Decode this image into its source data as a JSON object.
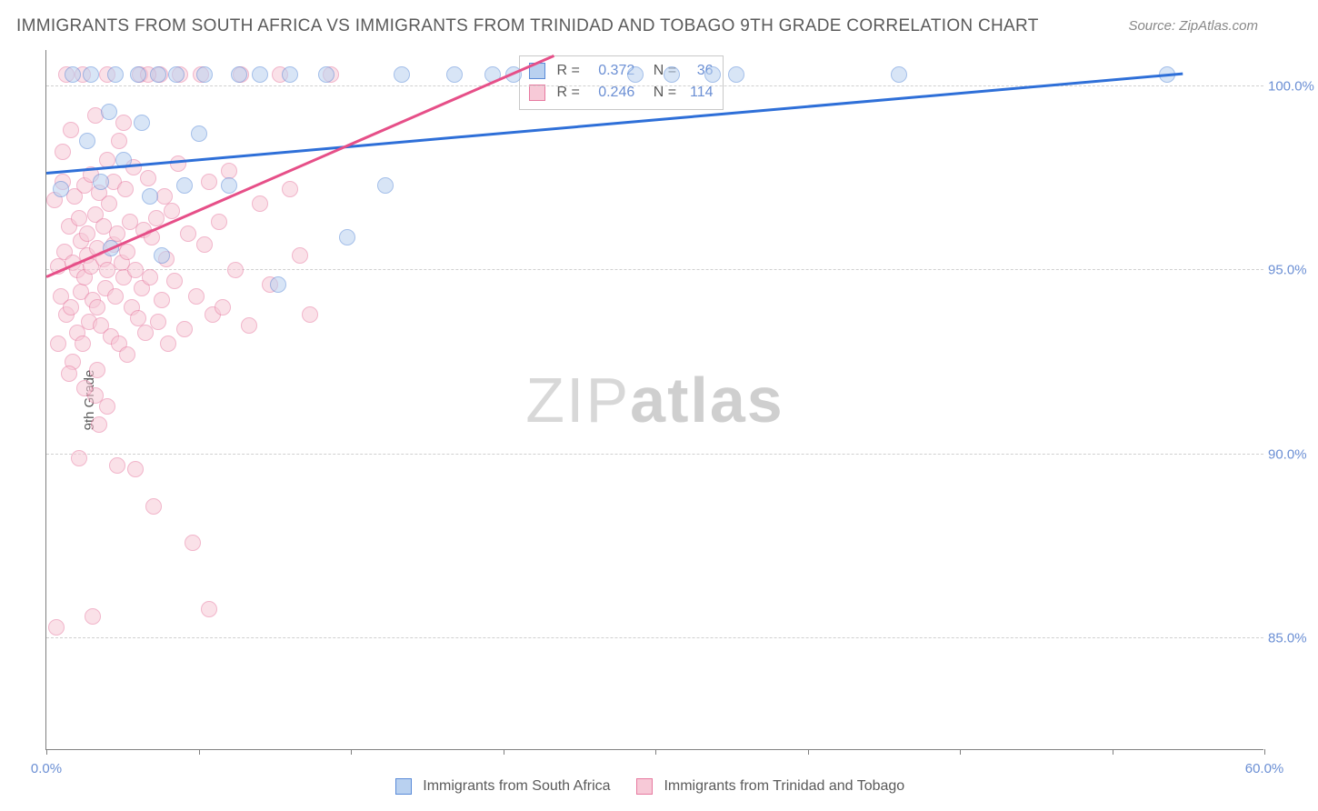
{
  "title": "IMMIGRANTS FROM SOUTH AFRICA VS IMMIGRANTS FROM TRINIDAD AND TOBAGO 9TH GRADE CORRELATION CHART",
  "source": "Source: ZipAtlas.com",
  "watermark_thin": "ZIP",
  "watermark_bold": "atlas",
  "ylabel": "9th Grade",
  "chart": {
    "type": "scatter",
    "xlim": [
      0,
      60
    ],
    "ylim": [
      82,
      101
    ],
    "xtick_positions": [
      0,
      7.5,
      15,
      22.5,
      30,
      37.5,
      45,
      52.5,
      60
    ],
    "xtick_labels": {
      "0": "0.0%",
      "60": "60.0%"
    },
    "ytick_positions": [
      85,
      90,
      95,
      100
    ],
    "ytick_labels": [
      "85.0%",
      "90.0%",
      "95.0%",
      "100.0%"
    ],
    "grid_color": "#d0d0d0",
    "series": [
      {
        "name": "Immigrants from South Africa",
        "fill": "#b9d1f0",
        "stroke": "#5a8bd8",
        "line_color": "#2e6fd8",
        "R": "0.372",
        "N": "36",
        "reg_line": {
          "x1": 0,
          "y1": 97.6,
          "x2": 56,
          "y2": 100.3
        },
        "points": [
          [
            0.7,
            97.2
          ],
          [
            1.3,
            100.3
          ],
          [
            2.0,
            98.5
          ],
          [
            2.2,
            100.3
          ],
          [
            2.7,
            97.4
          ],
          [
            3.1,
            99.3
          ],
          [
            3.2,
            95.6
          ],
          [
            3.4,
            100.3
          ],
          [
            3.8,
            98.0
          ],
          [
            4.5,
            100.3
          ],
          [
            4.7,
            99.0
          ],
          [
            5.1,
            97.0
          ],
          [
            5.5,
            100.3
          ],
          [
            5.7,
            95.4
          ],
          [
            6.4,
            100.3
          ],
          [
            6.8,
            97.3
          ],
          [
            7.5,
            98.7
          ],
          [
            7.8,
            100.3
          ],
          [
            9.0,
            97.3
          ],
          [
            9.5,
            100.3
          ],
          [
            10.5,
            100.3
          ],
          [
            11.4,
            94.6
          ],
          [
            12.0,
            100.3
          ],
          [
            13.8,
            100.3
          ],
          [
            14.8,
            95.9
          ],
          [
            16.7,
            97.3
          ],
          [
            17.5,
            100.3
          ],
          [
            20.1,
            100.3
          ],
          [
            22.0,
            100.3
          ],
          [
            23.0,
            100.3
          ],
          [
            29.0,
            100.3
          ],
          [
            30.8,
            100.3
          ],
          [
            32.8,
            100.3
          ],
          [
            34.0,
            100.3
          ],
          [
            42.0,
            100.3
          ],
          [
            55.2,
            100.3
          ]
        ]
      },
      {
        "name": "Immigrants from Trinidad and Tobago",
        "fill": "#f7c9d7",
        "stroke": "#e77aa0",
        "line_color": "#e64f88",
        "R": "0.246",
        "N": "114",
        "reg_line": {
          "x1": 0,
          "y1": 94.8,
          "x2": 25,
          "y2": 100.8
        },
        "points": [
          [
            0.4,
            96.9
          ],
          [
            0.6,
            95.1
          ],
          [
            0.7,
            94.3
          ],
          [
            0.8,
            97.4
          ],
          [
            0.9,
            95.5
          ],
          [
            1.0,
            93.8
          ],
          [
            1.1,
            96.2
          ],
          [
            1.2,
            94.0
          ],
          [
            1.3,
            95.2
          ],
          [
            1.3,
            92.5
          ],
          [
            1.4,
            97.0
          ],
          [
            1.5,
            95.0
          ],
          [
            1.5,
            93.3
          ],
          [
            1.6,
            96.4
          ],
          [
            1.7,
            94.4
          ],
          [
            1.7,
            95.8
          ],
          [
            1.8,
            93.0
          ],
          [
            1.9,
            97.3
          ],
          [
            1.9,
            94.8
          ],
          [
            2.0,
            95.4
          ],
          [
            2.0,
            96.0
          ],
          [
            2.1,
            93.6
          ],
          [
            2.2,
            95.1
          ],
          [
            2.2,
            97.6
          ],
          [
            2.3,
            94.2
          ],
          [
            2.4,
            96.5
          ],
          [
            2.4,
            91.6
          ],
          [
            2.5,
            95.6
          ],
          [
            2.5,
            94.0
          ],
          [
            2.6,
            97.1
          ],
          [
            2.7,
            93.5
          ],
          [
            2.8,
            95.3
          ],
          [
            2.8,
            96.2
          ],
          [
            2.9,
            94.5
          ],
          [
            3.0,
            98.0
          ],
          [
            3.0,
            95.0
          ],
          [
            3.1,
            96.8
          ],
          [
            3.2,
            93.2
          ],
          [
            3.3,
            97.4
          ],
          [
            3.3,
            95.7
          ],
          [
            3.4,
            94.3
          ],
          [
            3.5,
            96.0
          ],
          [
            3.6,
            98.5
          ],
          [
            3.6,
            93.0
          ],
          [
            3.7,
            95.2
          ],
          [
            3.8,
            94.8
          ],
          [
            3.9,
            97.2
          ],
          [
            4.0,
            95.5
          ],
          [
            4.0,
            92.7
          ],
          [
            4.1,
            96.3
          ],
          [
            4.2,
            94.0
          ],
          [
            4.3,
            97.8
          ],
          [
            4.4,
            89.6
          ],
          [
            4.4,
            95.0
          ],
          [
            4.5,
            93.7
          ],
          [
            4.6,
            100.3
          ],
          [
            4.7,
            94.5
          ],
          [
            4.8,
            96.1
          ],
          [
            4.9,
            93.3
          ],
          [
            5.0,
            97.5
          ],
          [
            5.1,
            94.8
          ],
          [
            5.2,
            95.9
          ],
          [
            5.3,
            88.6
          ],
          [
            5.4,
            96.4
          ],
          [
            5.5,
            93.6
          ],
          [
            5.6,
            100.3
          ],
          [
            5.7,
            94.2
          ],
          [
            5.8,
            97.0
          ],
          [
            5.9,
            95.3
          ],
          [
            6.0,
            93.0
          ],
          [
            6.2,
            96.6
          ],
          [
            6.3,
            94.7
          ],
          [
            6.5,
            97.9
          ],
          [
            6.6,
            100.3
          ],
          [
            6.8,
            93.4
          ],
          [
            7.0,
            96.0
          ],
          [
            7.2,
            87.6
          ],
          [
            7.4,
            94.3
          ],
          [
            7.6,
            100.3
          ],
          [
            7.8,
            95.7
          ],
          [
            8.0,
            97.4
          ],
          [
            8.2,
            93.8
          ],
          [
            8.5,
            96.3
          ],
          [
            8.7,
            94.0
          ],
          [
            9.0,
            97.7
          ],
          [
            9.3,
            95.0
          ],
          [
            9.6,
            100.3
          ],
          [
            10.0,
            93.5
          ],
          [
            10.5,
            96.8
          ],
          [
            11.0,
            94.6
          ],
          [
            11.5,
            100.3
          ],
          [
            12.0,
            97.2
          ],
          [
            12.5,
            95.4
          ],
          [
            13.0,
            93.8
          ],
          [
            14.0,
            100.3
          ],
          [
            0.5,
            85.3
          ],
          [
            1.6,
            89.9
          ],
          [
            2.3,
            85.6
          ],
          [
            2.6,
            90.8
          ],
          [
            3.0,
            91.3
          ],
          [
            3.5,
            89.7
          ],
          [
            0.8,
            98.2
          ],
          [
            1.0,
            100.3
          ],
          [
            1.2,
            98.8
          ],
          [
            1.8,
            100.3
          ],
          [
            2.4,
            99.2
          ],
          [
            3.0,
            100.3
          ],
          [
            3.8,
            99.0
          ],
          [
            5.0,
            100.3
          ],
          [
            8.0,
            85.8
          ],
          [
            0.6,
            93.0
          ],
          [
            1.1,
            92.2
          ],
          [
            1.9,
            91.8
          ],
          [
            2.5,
            92.3
          ]
        ]
      }
    ]
  },
  "legend_series1": "Immigrants from South Africa",
  "legend_series2": "Immigrants from Trinidad and Tobago"
}
